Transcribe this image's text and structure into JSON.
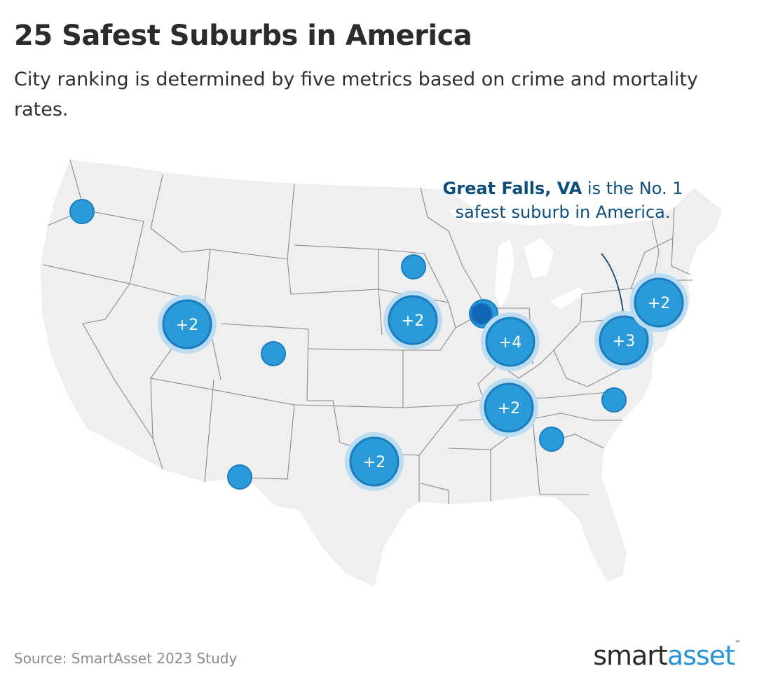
{
  "title": "25 Safest Suburbs in America",
  "subtitle": "City ranking is determined by five metrics based on crime and mortality rates.",
  "callout": {
    "highlight": "Great Falls, VA",
    "text": " is the No. 1 safest suburb in America."
  },
  "source": "Source: SmartAsset 2023 Study",
  "logo": {
    "part1": "smart",
    "part2": "asset",
    "mark": "™"
  },
  "colors": {
    "land": "#efefef",
    "border": "#8a8a8a",
    "marker": "#2b9ad8",
    "marker_stroke": "#1a7dbf",
    "marker_dark": "#1166b8",
    "halo": "#bcdcf2",
    "callout": "#0d4e7c"
  },
  "clusters": [
    {
      "id": "utah",
      "label": "+2"
    },
    {
      "id": "iowa",
      "label": "+2"
    },
    {
      "id": "indiana",
      "label": "+4"
    },
    {
      "id": "maryland-virginia",
      "label": "+3"
    },
    {
      "id": "new-england",
      "label": "+2"
    },
    {
      "id": "tennessee",
      "label": "+2"
    },
    {
      "id": "texas",
      "label": "+2"
    }
  ],
  "single_markers": [
    "washington",
    "minnesota",
    "colorado",
    "illinois",
    "north-carolina",
    "georgia",
    "new-mexico-el-paso"
  ]
}
